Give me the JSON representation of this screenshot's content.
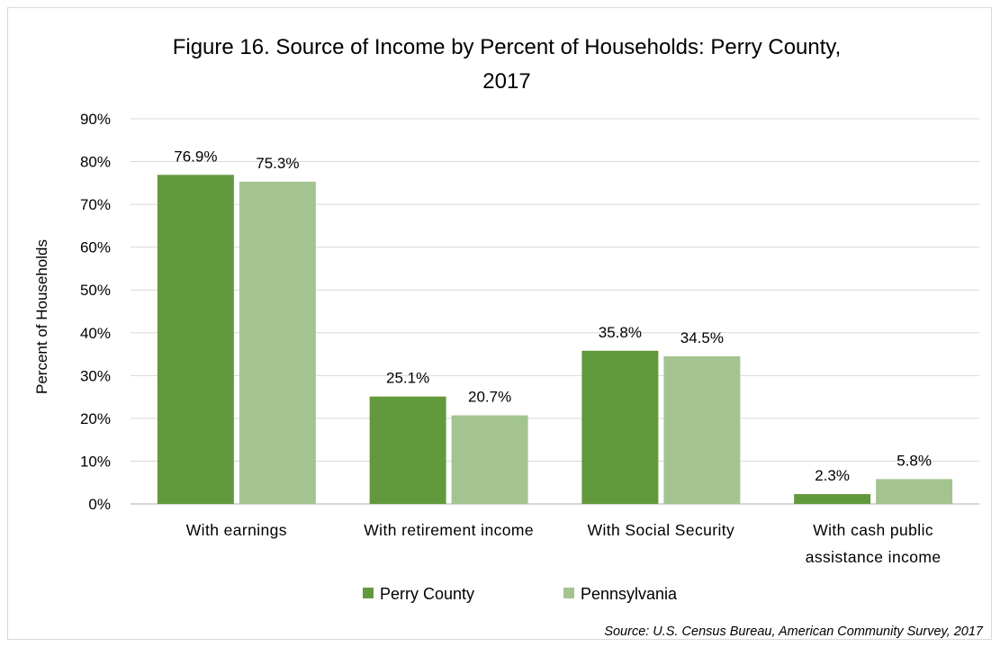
{
  "chart_data": {
    "type": "bar",
    "title_lines": [
      "Figure 16. Source of Income by Percent of Households: Perry County,",
      "2017"
    ],
    "ylabel": "Percent of Households",
    "xlabel": "",
    "ylim": [
      0,
      90
    ],
    "y_ticks": [
      "0%",
      "10%",
      "20%",
      "30%",
      "40%",
      "50%",
      "60%",
      "70%",
      "80%",
      "90%"
    ],
    "y_tick_values": [
      0,
      10,
      20,
      30,
      40,
      50,
      60,
      70,
      80,
      90
    ],
    "grid": true,
    "legend_position": "bottom",
    "categories": [
      [
        "With earnings"
      ],
      [
        "With retirement income"
      ],
      [
        "With Social Security"
      ],
      [
        "With cash public",
        "assistance income"
      ]
    ],
    "series": [
      {
        "name": "Perry County",
        "color": "#63993d",
        "values": [
          76.9,
          25.1,
          35.8,
          2.3
        ],
        "labels": [
          "76.9%",
          "25.1%",
          "35.8%",
          "2.3%"
        ]
      },
      {
        "name": "Pennsylvania",
        "color": "#a3c490",
        "values": [
          75.3,
          20.7,
          34.5,
          5.8
        ],
        "labels": [
          "75.3%",
          "20.7%",
          "34.5%",
          "5.8%"
        ]
      }
    ],
    "source": "Source: U.S. Census Bureau, American Community Survey, 2017"
  }
}
